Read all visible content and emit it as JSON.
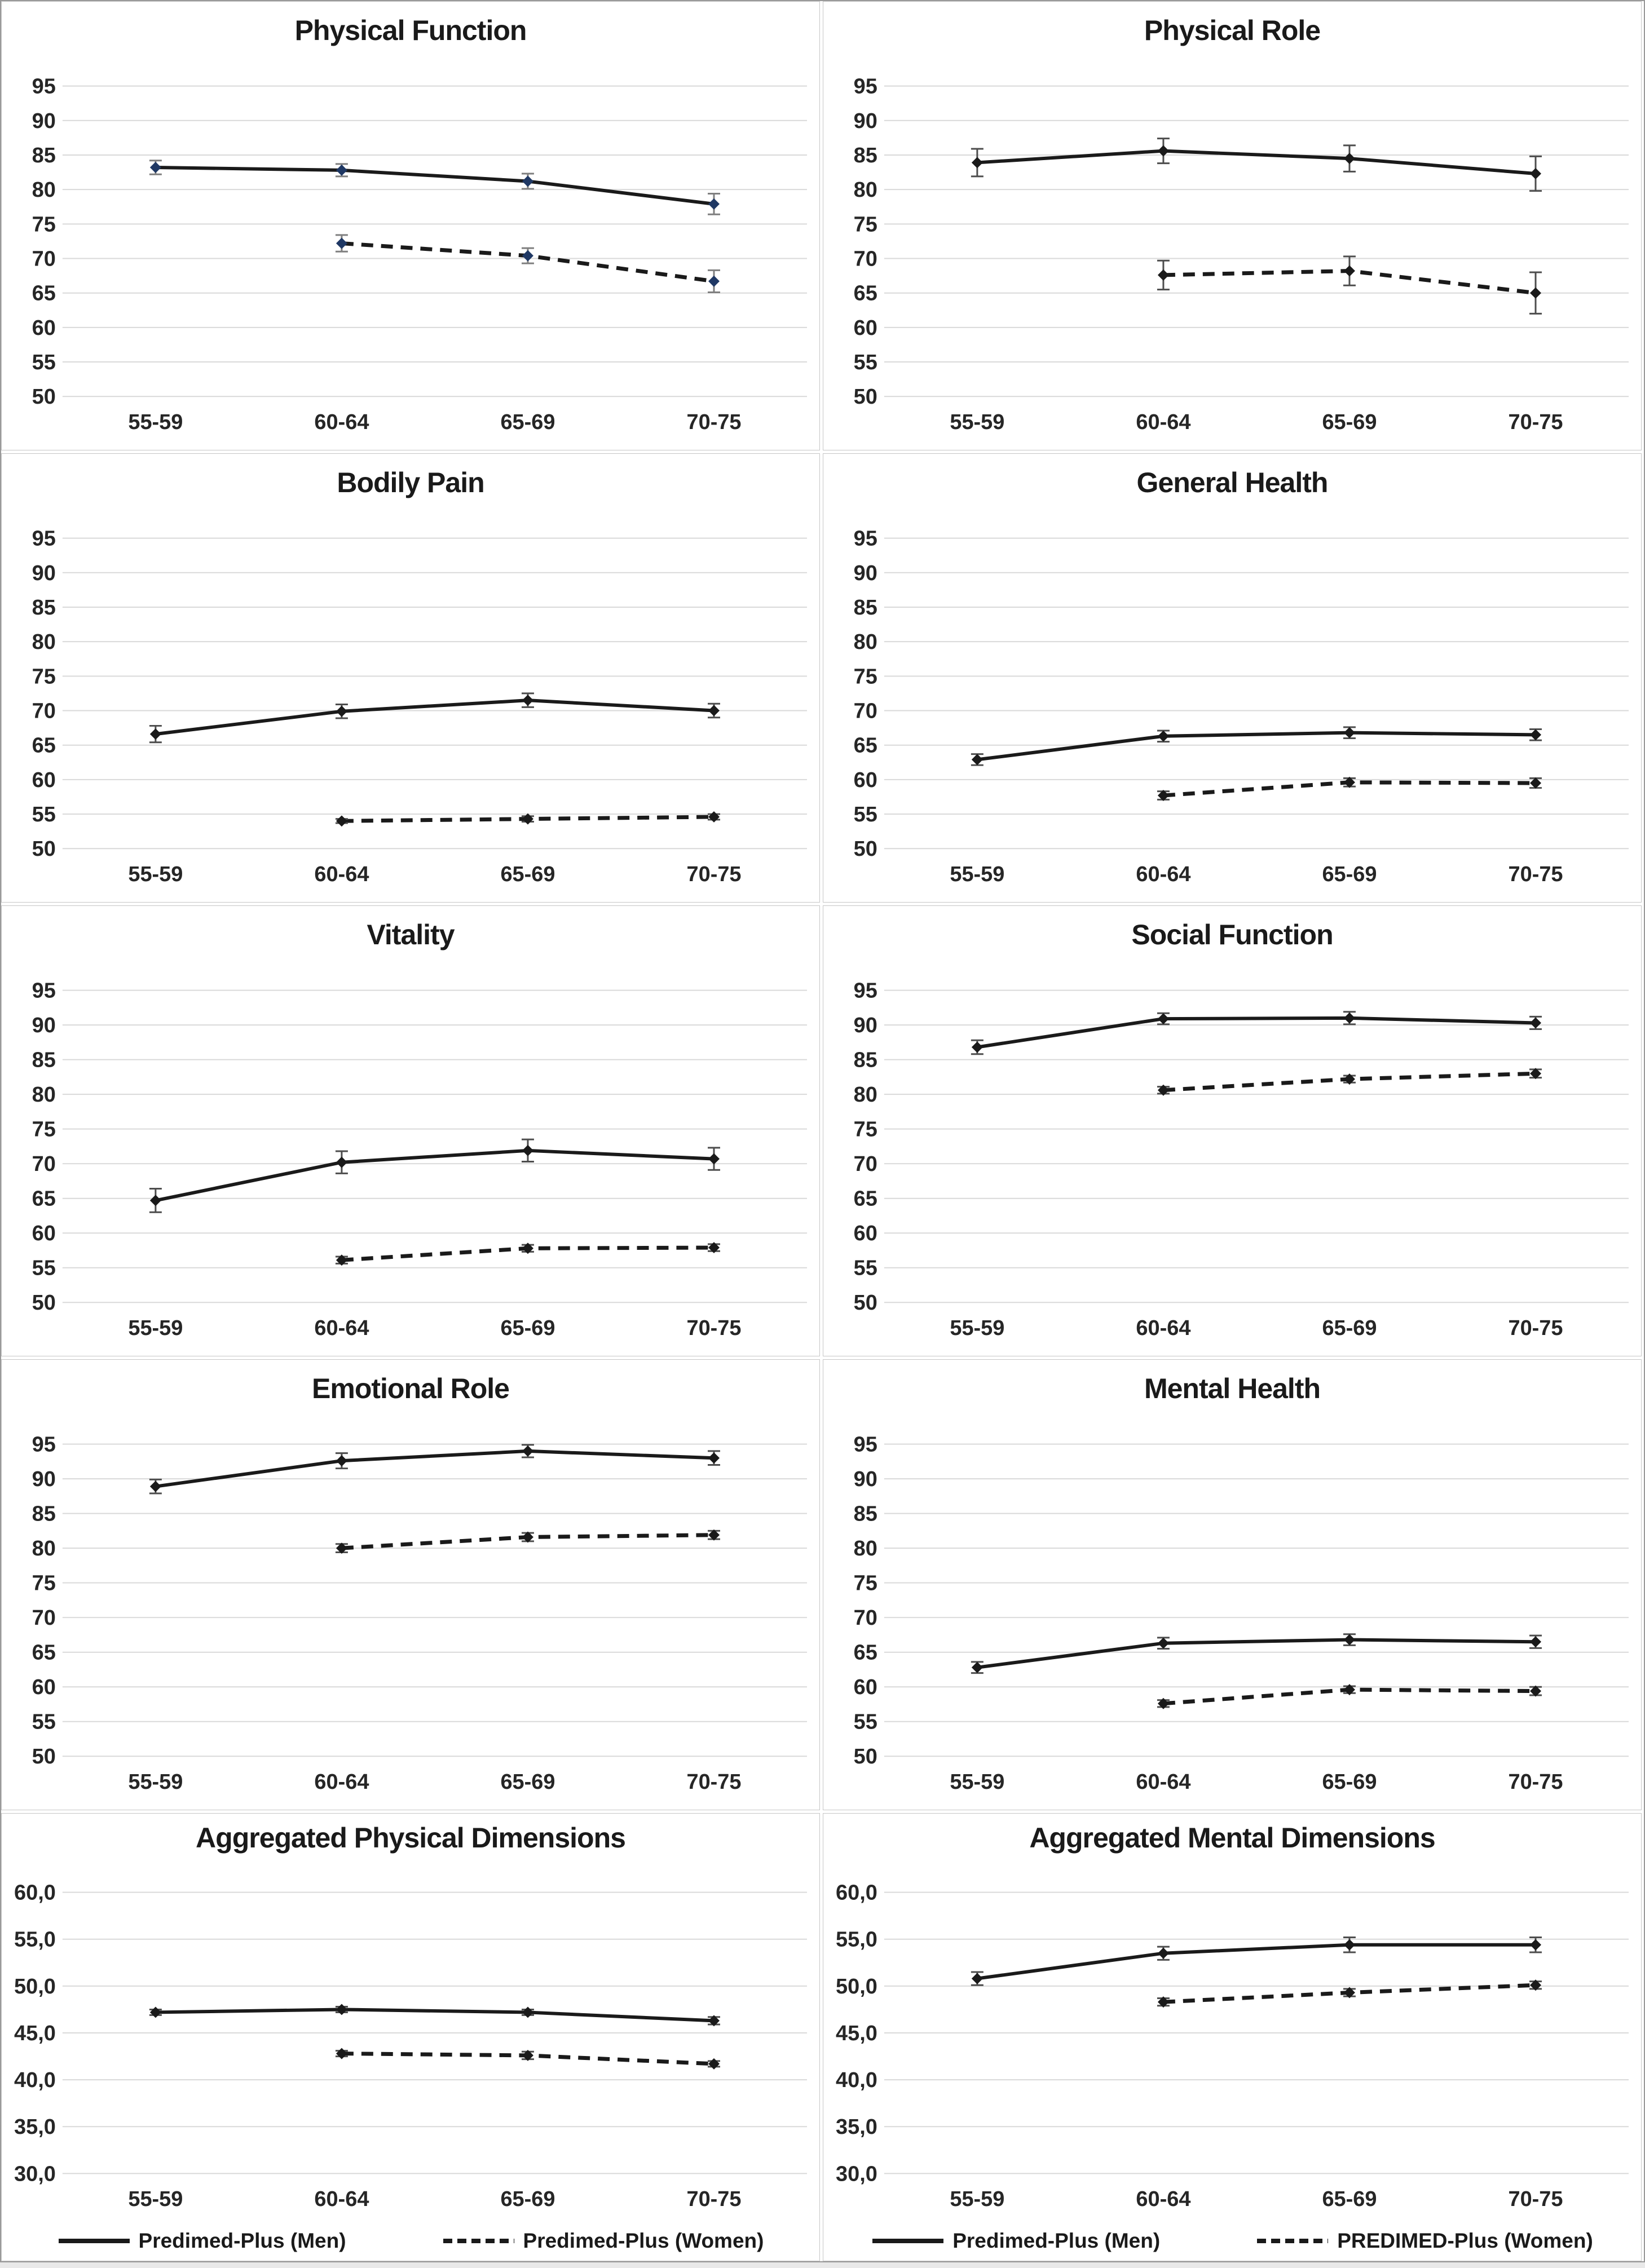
{
  "figure": {
    "name": "SF-36 dimensions by age group",
    "background": "#ffffff",
    "border_color": "#999999"
  },
  "colors": {
    "line": "#1a1a1a",
    "grid": "#d9d9d9",
    "text": "#262626",
    "navy_marker": "#1f3864",
    "black_marker": "#1a1a1a"
  },
  "categories": [
    "55-59",
    "60-64",
    "65-69",
    "70-75"
  ],
  "chart_data": [
    {
      "type": "line",
      "title": "Physical Function",
      "categories": [
        "55-59",
        "60-64",
        "65-69",
        "70-75"
      ],
      "ylim": [
        50,
        95
      ],
      "ytick_step": 5,
      "ytick_labels": [
        "95",
        "90",
        "85",
        "80",
        "75",
        "70",
        "65",
        "60",
        "55",
        "50"
      ],
      "grid": true,
      "marker_color": "#1f3864",
      "error_color": "#7f7f7f",
      "series": [
        {
          "name": "Predimed-Plus (Men)",
          "style": "solid",
          "values": [
            83.2,
            82.8,
            81.2,
            77.9
          ],
          "errors": [
            1.0,
            0.9,
            1.1,
            1.5
          ]
        },
        {
          "name": "Predimed-Plus (Women)",
          "style": "dashed",
          "values": [
            null,
            72.2,
            70.4,
            66.7
          ],
          "errors": [
            null,
            1.2,
            1.1,
            1.6
          ]
        }
      ],
      "legend": null
    },
    {
      "type": "line",
      "title": "Physical Role",
      "categories": [
        "55-59",
        "60-64",
        "65-69",
        "70-75"
      ],
      "ylim": [
        50,
        95
      ],
      "ytick_step": 5,
      "ytick_labels": [
        "95",
        "90",
        "85",
        "80",
        "75",
        "70",
        "65",
        "60",
        "55",
        "50"
      ],
      "grid": true,
      "marker_color": "#1a1a1a",
      "error_color": "#4d4d4d",
      "series": [
        {
          "name": "Predimed-Plus (Men)",
          "style": "solid",
          "values": [
            83.9,
            85.6,
            84.5,
            82.3
          ],
          "errors": [
            2.0,
            1.8,
            1.9,
            2.5
          ]
        },
        {
          "name": "Predimed-Plus (Women)",
          "style": "dashed",
          "values": [
            null,
            67.6,
            68.2,
            65.0
          ],
          "errors": [
            null,
            2.1,
            2.1,
            3.0
          ]
        }
      ],
      "legend": null
    },
    {
      "type": "line",
      "title": "Bodily Pain",
      "categories": [
        "55-59",
        "60-64",
        "65-69",
        "70-75"
      ],
      "ylim": [
        50,
        95
      ],
      "ytick_step": 5,
      "ytick_labels": [
        "95",
        "90",
        "85",
        "80",
        "75",
        "70",
        "65",
        "60",
        "55",
        "50"
      ],
      "grid": true,
      "marker_color": "#1a1a1a",
      "error_color": "#4d4d4d",
      "series": [
        {
          "name": "Predimed-Plus (Men)",
          "style": "solid",
          "values": [
            66.6,
            69.9,
            71.5,
            70.0
          ],
          "errors": [
            1.2,
            1.0,
            1.0,
            1.0
          ]
        },
        {
          "name": "Predimed-Plus (Women)",
          "style": "dashed",
          "values": [
            null,
            54.0,
            54.3,
            54.6
          ],
          "errors": [
            null,
            0.3,
            0.4,
            0.4
          ]
        }
      ],
      "legend": null
    },
    {
      "type": "line",
      "title": "General Health",
      "categories": [
        "55-59",
        "60-64",
        "65-69",
        "70-75"
      ],
      "ylim": [
        50,
        95
      ],
      "ytick_step": 5,
      "ytick_labels": [
        "95",
        "90",
        "85",
        "80",
        "75",
        "70",
        "65",
        "60",
        "55",
        "50"
      ],
      "grid": true,
      "marker_color": "#1a1a1a",
      "error_color": "#4d4d4d",
      "series": [
        {
          "name": "Predimed-Plus (Men)",
          "style": "solid",
          "values": [
            62.9,
            66.3,
            66.8,
            66.5
          ],
          "errors": [
            0.8,
            0.8,
            0.8,
            0.8
          ]
        },
        {
          "name": "Predimed-Plus (Women)",
          "style": "dashed",
          "values": [
            null,
            57.7,
            59.6,
            59.5
          ],
          "errors": [
            null,
            0.6,
            0.6,
            0.7
          ]
        }
      ],
      "legend": null
    },
    {
      "type": "line",
      "title": "Vitality",
      "categories": [
        "55-59",
        "60-64",
        "65-69",
        "70-75"
      ],
      "ylim": [
        50,
        95
      ],
      "ytick_step": 5,
      "ytick_labels": [
        "95",
        "90",
        "85",
        "80",
        "75",
        "70",
        "65",
        "60",
        "55",
        "50"
      ],
      "grid": true,
      "marker_color": "#1a1a1a",
      "error_color": "#4d4d4d",
      "series": [
        {
          "name": "Predimed-Plus (Men)",
          "style": "solid",
          "values": [
            64.7,
            70.2,
            71.9,
            70.7
          ],
          "errors": [
            1.7,
            1.6,
            1.6,
            1.6
          ]
        },
        {
          "name": "Predimed-Plus (Women)",
          "style": "dashed",
          "values": [
            null,
            56.1,
            57.8,
            57.9
          ],
          "errors": [
            null,
            0.5,
            0.5,
            0.5
          ]
        }
      ],
      "legend": null
    },
    {
      "type": "line",
      "title": "Social Function",
      "categories": [
        "55-59",
        "60-64",
        "65-69",
        "70-75"
      ],
      "ylim": [
        50,
        95
      ],
      "ytick_step": 5,
      "ytick_labels": [
        "95",
        "90",
        "85",
        "80",
        "75",
        "70",
        "65",
        "60",
        "55",
        "50"
      ],
      "grid": true,
      "marker_color": "#1a1a1a",
      "error_color": "#4d4d4d",
      "series": [
        {
          "name": "Predimed-Plus (Men)",
          "style": "solid",
          "values": [
            86.8,
            90.9,
            91.0,
            90.3
          ],
          "errors": [
            1.0,
            0.8,
            0.9,
            0.9
          ]
        },
        {
          "name": "Predimed-Plus (Women)",
          "style": "dashed",
          "values": [
            null,
            80.6,
            82.2,
            83.0
          ],
          "errors": [
            null,
            0.5,
            0.5,
            0.6
          ]
        }
      ],
      "legend": null
    },
    {
      "type": "line",
      "title": "Emotional Role",
      "categories": [
        "55-59",
        "60-64",
        "65-69",
        "70-75"
      ],
      "ylim": [
        50,
        95
      ],
      "ytick_step": 5,
      "ytick_labels": [
        "95",
        "90",
        "85",
        "80",
        "75",
        "70",
        "65",
        "60",
        "55",
        "50"
      ],
      "grid": true,
      "marker_color": "#1a1a1a",
      "error_color": "#4d4d4d",
      "series": [
        {
          "name": "Predimed-Plus (Men)",
          "style": "solid",
          "values": [
            88.9,
            92.6,
            94.0,
            93.0
          ],
          "errors": [
            1.0,
            1.1,
            0.9,
            1.0
          ]
        },
        {
          "name": "Predimed-Plus (Women)",
          "style": "dashed",
          "values": [
            null,
            80.0,
            81.6,
            81.9
          ],
          "errors": [
            null,
            0.6,
            0.6,
            0.6
          ]
        }
      ],
      "legend": null
    },
    {
      "type": "line",
      "title": "Mental Health",
      "categories": [
        "55-59",
        "60-64",
        "65-69",
        "70-75"
      ],
      "ylim": [
        50,
        95
      ],
      "ytick_step": 5,
      "ytick_labels": [
        "95",
        "90",
        "85",
        "80",
        "75",
        "70",
        "65",
        "60",
        "55",
        "50"
      ],
      "grid": true,
      "marker_color": "#1a1a1a",
      "error_color": "#4d4d4d",
      "series": [
        {
          "name": "Predimed-Plus (Men)",
          "style": "solid",
          "values": [
            62.8,
            66.3,
            66.8,
            66.5
          ],
          "errors": [
            0.8,
            0.8,
            0.8,
            0.9
          ]
        },
        {
          "name": "Predimed-Plus (Women)",
          "style": "dashed",
          "values": [
            null,
            57.6,
            59.6,
            59.4
          ],
          "errors": [
            null,
            0.5,
            0.5,
            0.6
          ]
        }
      ],
      "legend": null
    },
    {
      "type": "line",
      "title": "Aggregated Physical Dimensions",
      "categories": [
        "55-59",
        "60-64",
        "65-69",
        "70-75"
      ],
      "ylim": [
        30,
        60
      ],
      "ytick_step": 5,
      "ytick_labels": [
        "60,0",
        "55,0",
        "50,0",
        "45,0",
        "40,0",
        "35,0",
        "30,0"
      ],
      "grid": true,
      "marker_color": "#1a1a1a",
      "error_color": "#4d4d4d",
      "series": [
        {
          "name": "Predimed-Plus (Men)",
          "style": "solid",
          "values": [
            47.2,
            47.5,
            47.2,
            46.3
          ],
          "errors": [
            0.3,
            0.3,
            0.3,
            0.4
          ]
        },
        {
          "name": "Predimed-Plus (Women)",
          "style": "dashed",
          "values": [
            null,
            42.8,
            42.6,
            41.7
          ],
          "errors": [
            null,
            0.3,
            0.4,
            0.3
          ]
        }
      ],
      "legend": {
        "men": "Predimed-Plus (Men)",
        "women": "Predimed-Plus (Women)"
      }
    },
    {
      "type": "line",
      "title": "Aggregated Mental Dimensions",
      "categories": [
        "55-59",
        "60-64",
        "65-69",
        "70-75"
      ],
      "ylim": [
        30,
        60
      ],
      "ytick_step": 5,
      "ytick_labels": [
        "60,0",
        "55,0",
        "50,0",
        "45,0",
        "40,0",
        "35,0",
        "30,0"
      ],
      "grid": true,
      "marker_color": "#1a1a1a",
      "error_color": "#4d4d4d",
      "series": [
        {
          "name": "Predimed-Plus (Men)",
          "style": "solid",
          "values": [
            50.8,
            53.5,
            54.4,
            54.4
          ],
          "errors": [
            0.7,
            0.7,
            0.8,
            0.8
          ]
        },
        {
          "name": "Predimed-Plus (Women)",
          "style": "dashed",
          "values": [
            null,
            48.3,
            49.3,
            50.1
          ],
          "errors": [
            null,
            0.4,
            0.4,
            0.4
          ]
        }
      ],
      "legend": {
        "men": "Predimed-Plus (Men)",
        "women": "PREDIMED-Plus (Women)"
      }
    }
  ]
}
